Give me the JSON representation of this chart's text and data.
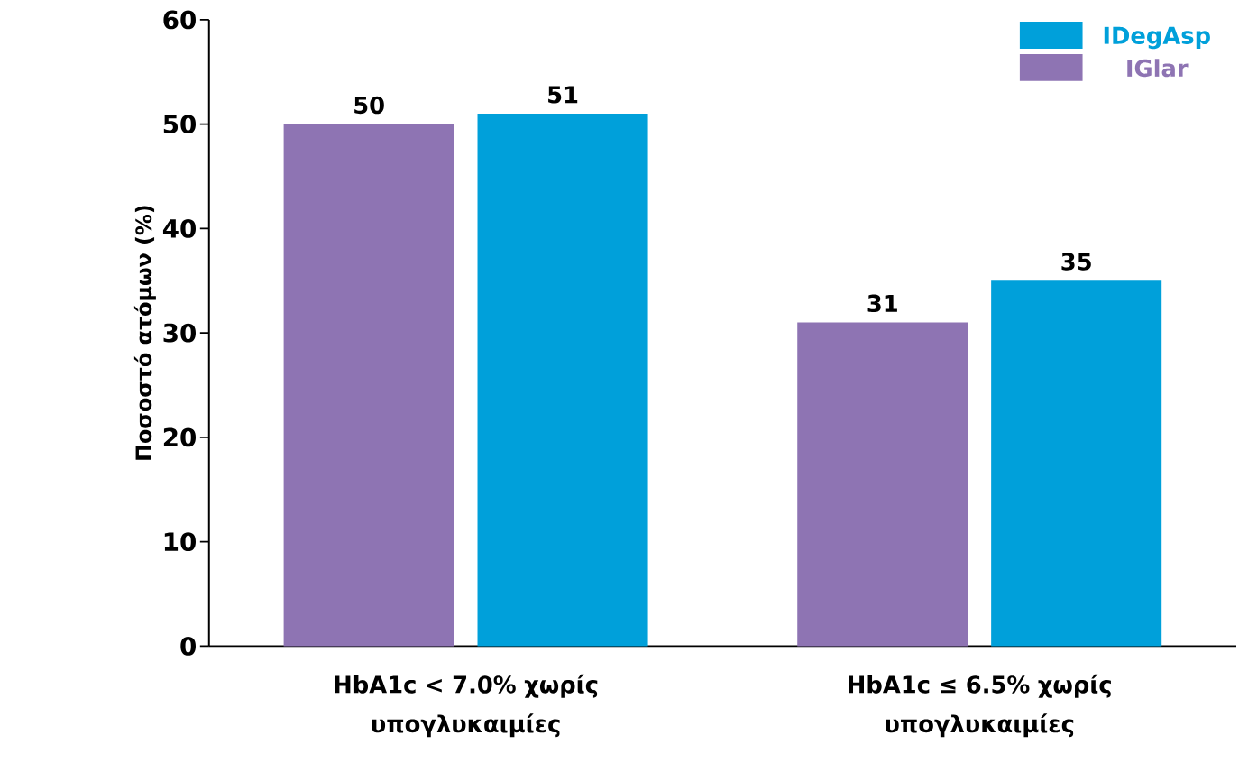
{
  "chart_data": {
    "type": "bar",
    "ylabel": "Ποσοστό ατόμων (%)",
    "categories": [
      "HbA1c < 7.0% χωρίς υπογλυκαιμίες",
      "HbA1c ≤ 6.5% χωρίς υπογλυκαιμίες"
    ],
    "series": [
      {
        "name": "IGlar",
        "color": "#8e74b3",
        "values": [
          50,
          31
        ]
      },
      {
        "name": "IDegAsp",
        "color": "#00a0da",
        "values": [
          51,
          35
        ]
      }
    ],
    "ylim": [
      0,
      60
    ],
    "yticks": [
      0,
      10,
      20,
      30,
      40,
      50,
      60
    ],
    "data_labels": true,
    "legend": "top right",
    "grid": false
  }
}
